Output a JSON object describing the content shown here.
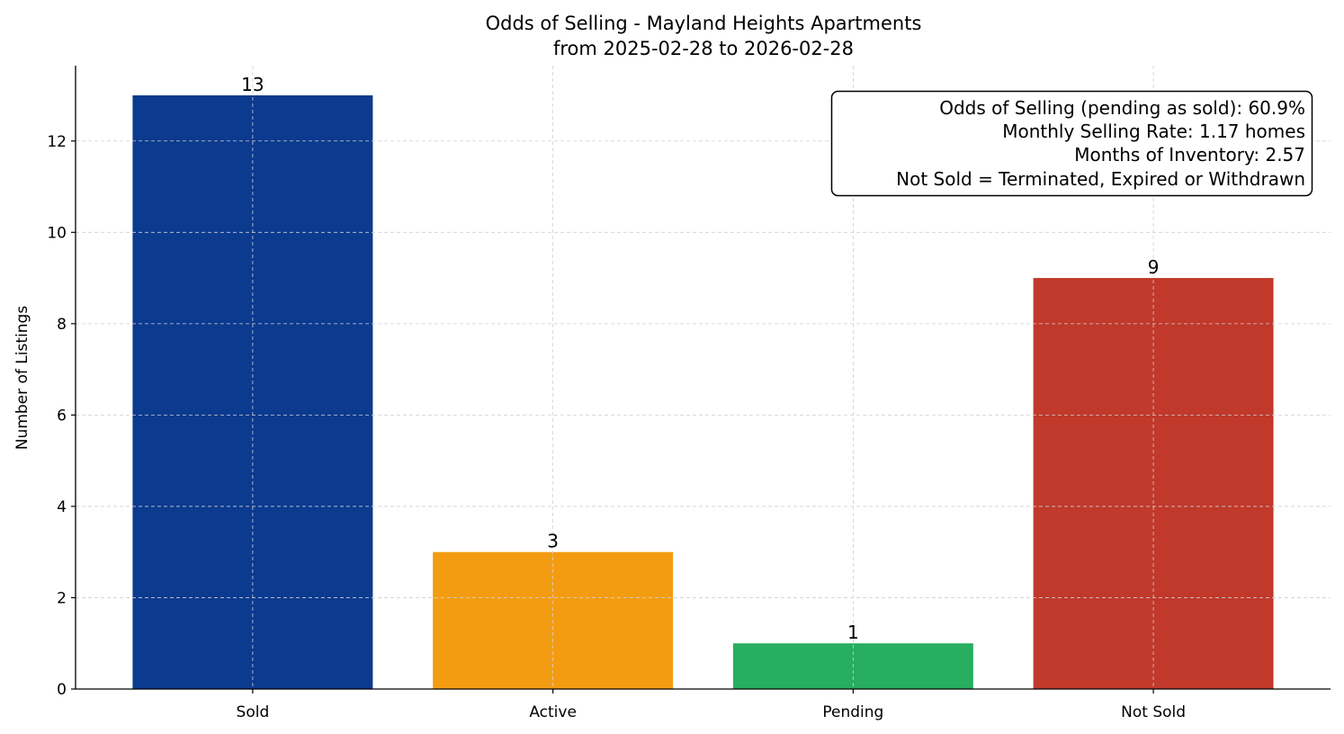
{
  "chart_data": {
    "type": "bar",
    "title": "Odds of Selling - Mayland Heights Apartments",
    "subtitle": "from 2025-02-28 to 2026-02-28",
    "xlabel": "",
    "ylabel": "Number of Listings",
    "categories": [
      "Sold",
      "Active",
      "Pending",
      "Not Sold"
    ],
    "values": [
      13,
      3,
      1,
      9
    ],
    "data_labels": [
      "13",
      "3",
      "1",
      "9"
    ],
    "colors": [
      "#0b3a8f",
      "#f39c12",
      "#27ae60",
      "#c0392b"
    ],
    "ylim": [
      0,
      13.65
    ],
    "yticks": [
      0,
      2,
      4,
      6,
      8,
      10,
      12
    ],
    "ytick_labels": [
      "0",
      "2",
      "4",
      "6",
      "8",
      "10",
      "12"
    ],
    "grid": true,
    "legend": "none",
    "annotation_box": {
      "placement": "top-right",
      "lines": [
        "Odds of Selling (pending as sold): 60.9%",
        "Monthly Selling Rate: 1.17 homes",
        "Months of Inventory: 2.57",
        "Not Sold = Terminated, Expired or Withdrawn"
      ]
    }
  }
}
